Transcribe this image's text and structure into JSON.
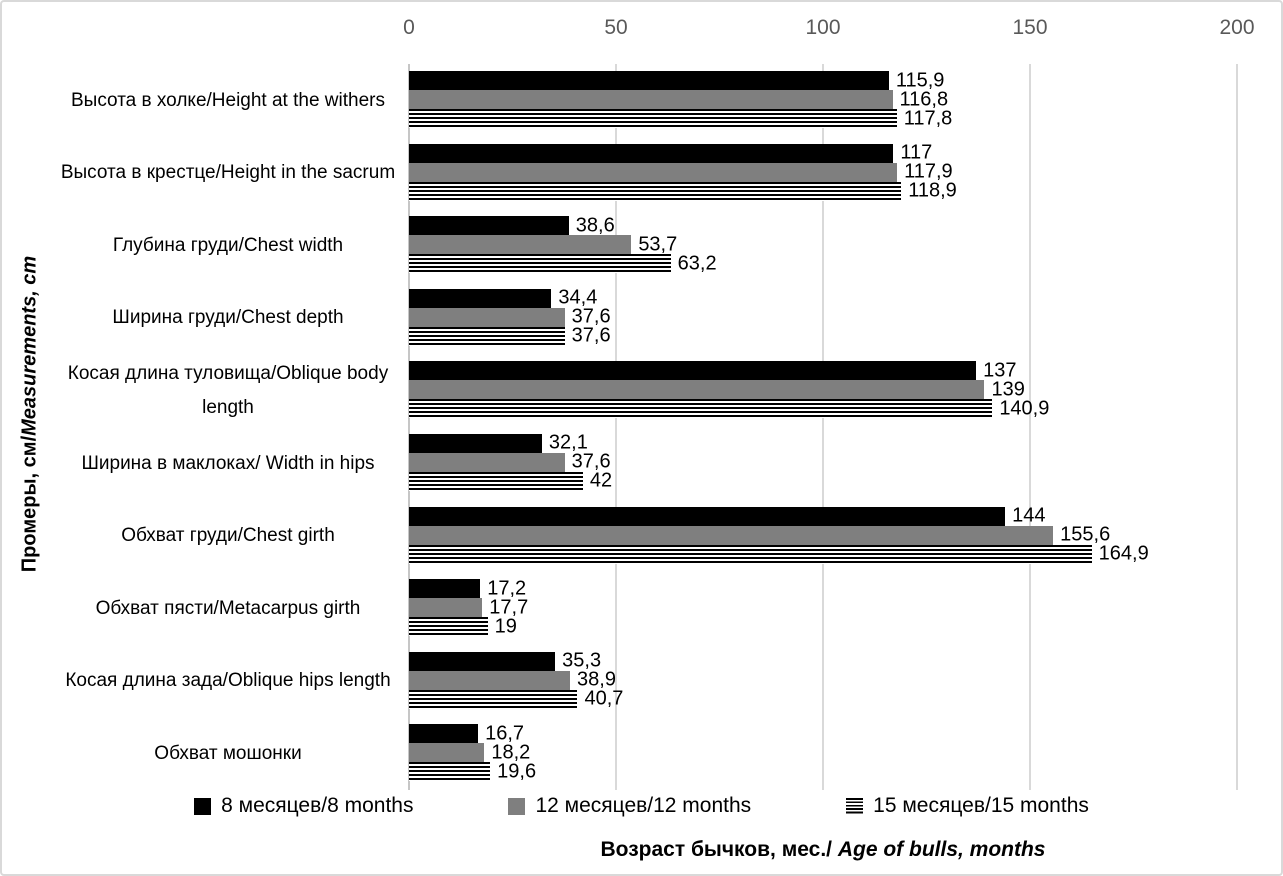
{
  "colors": {
    "bar_black": "#000000",
    "bar_gray": "#7f7f7f",
    "gridline": "#d9d9d9",
    "tick_text": "#595959",
    "frame_border": "#d9d9d9"
  },
  "y_axis_title": {
    "ru": "Промеры, см/",
    "en": "Measurements,  cm"
  },
  "x_axis_title": {
    "ru": "Возраст бычков,  мес./",
    "en": "Age of bulls, months"
  },
  "chart_data": {
    "type": "bar",
    "orientation": "horizontal",
    "title": "",
    "xlabel": "Возраст бычков, мес./ Age of bulls, months",
    "ylabel": "Промеры, см/Measurements, cm",
    "xlim": [
      0,
      200
    ],
    "xticks": [
      "0",
      "50",
      "100",
      "150",
      "200"
    ],
    "grid": "vertical",
    "legend_position": "bottom",
    "value_axis_position": "top",
    "categories": [
      "Высота в холке/Height at the withers",
      "Высота в крестце/Height in the sacrum",
      "Глубина груди/Chest width",
      "Ширина груди/Chest  depth",
      "Косая длина туловища/Oblique body length",
      "Ширина в маклоках/ Width in hips",
      "Обхват груди/Chest girth",
      "Обхват пясти/Metacarpus girth",
      "Косая длина зада/Oblique hips length",
      "Обхват мошонки"
    ],
    "series": [
      {
        "name": "8 месяцев/8 months",
        "pattern": "solid-black",
        "color": "#000000",
        "values": [
          115.9,
          117,
          38.6,
          34.4,
          137,
          32.1,
          144,
          17.2,
          35.3,
          16.7
        ],
        "value_labels": [
          "115,9",
          "117",
          "38,6",
          "34,4",
          "137",
          "32,1",
          "144",
          "17,2",
          "35,3",
          "16,7"
        ]
      },
      {
        "name": "12 месяцев/12 months",
        "pattern": "solid-gray",
        "color": "#7f7f7f",
        "values": [
          116.8,
          117.9,
          53.7,
          37.6,
          139,
          37.6,
          155.6,
          17.7,
          38.9,
          18.2
        ],
        "value_labels": [
          "116,8",
          "117,9",
          "53,7",
          "37,6",
          "139",
          "37,6",
          "155,6",
          "17,7",
          "38,9",
          "18,2"
        ]
      },
      {
        "name": "15 месяцев/15 months",
        "pattern": "horizontal-stripes",
        "color": "#000000",
        "values": [
          117.8,
          118.9,
          63.2,
          37.6,
          140.9,
          42,
          164.9,
          19,
          40.7,
          19.6
        ],
        "value_labels": [
          "117,8",
          "118,9",
          "63,2",
          "37,6",
          "140,9",
          "42",
          "164,9",
          "19",
          "40,7",
          "19,6"
        ]
      }
    ]
  }
}
